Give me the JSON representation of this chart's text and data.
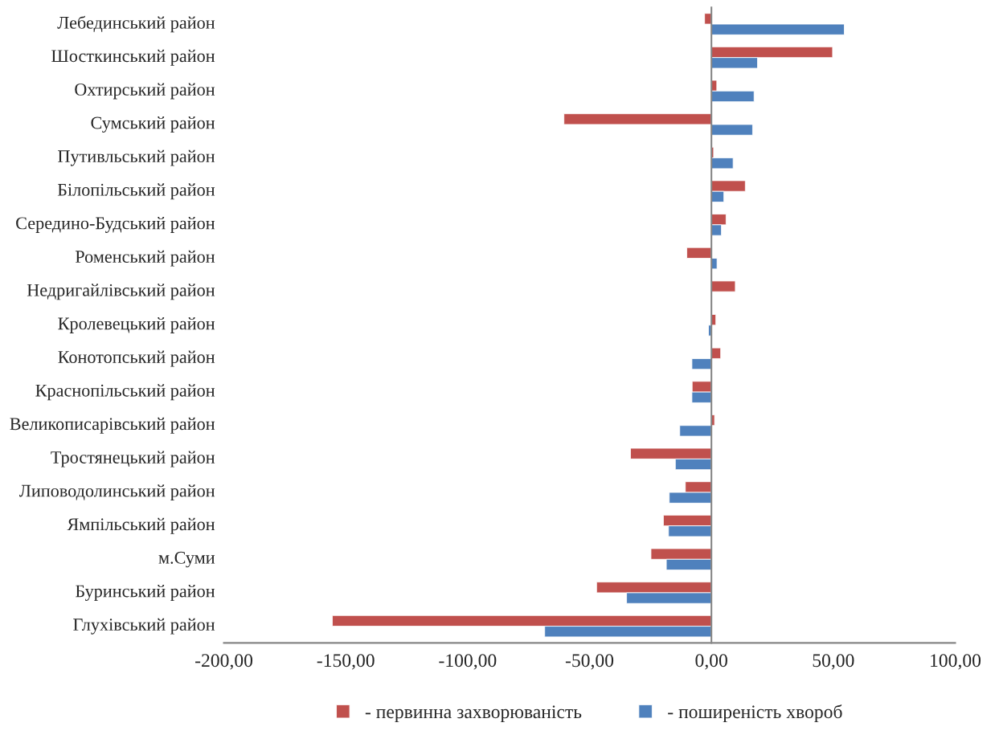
{
  "chart_data": {
    "type": "bar",
    "orientation": "horizontal",
    "categories": [
      "Лебединський район",
      "Шосткинський район",
      "Охтирський район",
      "Сумський район",
      "Путивльський район",
      "Білопільський район",
      "Середино-Будський район",
      "Роменський район",
      "Недригайлівський район",
      "Кролевецький район",
      "Конотопський район",
      "Краснопільський район",
      "Великописарівський район",
      "Тростянецький район",
      "Липоводолинський район",
      "Ямпільський район",
      "м.Суми",
      "Буринський район",
      "Глухівський район"
    ],
    "series": [
      {
        "name": "- первинна захворюваність",
        "color": "#c0504d",
        "values": [
          -2.8,
          49.7,
          2.2,
          -60.5,
          0.9,
          13.9,
          6.0,
          -10.1,
          9.8,
          1.8,
          3.8,
          -7.9,
          1.3,
          -33.2,
          -10.7,
          -19.7,
          -24.8,
          -47.1,
          -155.5
        ]
      },
      {
        "name": "- поширеність хвороб",
        "color": "#4f81bd",
        "values": [
          54.5,
          18.9,
          17.5,
          16.9,
          8.9,
          5.1,
          4.1,
          2.3,
          null,
          -1.2,
          -8.0,
          -8.0,
          -13.0,
          -14.8,
          -17.3,
          -17.6,
          -18.5,
          -34.8,
          -68.4
        ]
      }
    ],
    "xlim": [
      -200,
      100
    ],
    "xticks": [
      {
        "value": -200,
        "label": "-200,00"
      },
      {
        "value": -150,
        "label": "-150,00"
      },
      {
        "value": -100,
        "label": "-100,00"
      },
      {
        "value": -50,
        "label": "-50,00"
      },
      {
        "value": 0,
        "label": "0,00"
      },
      {
        "value": 50,
        "label": "50,00"
      },
      {
        "value": 100,
        "label": "100,00"
      }
    ],
    "legend": "bottom"
  }
}
